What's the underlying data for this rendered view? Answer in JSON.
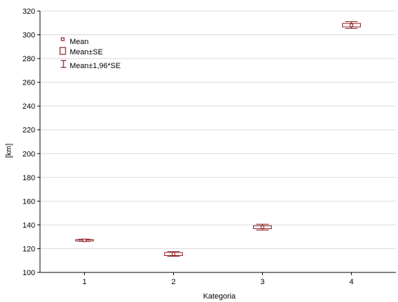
{
  "chart_data": {
    "type": "box",
    "xlabel": "Kategoria",
    "ylabel": "[km]",
    "ylim": [
      100,
      320
    ],
    "yticks": [
      100,
      120,
      140,
      160,
      180,
      200,
      220,
      240,
      260,
      280,
      300,
      320
    ],
    "categories": [
      "1",
      "2",
      "3",
      "4"
    ],
    "series": [
      {
        "stats": [
          {
            "category": "1",
            "mean": 127.0,
            "se_low": 126.5,
            "se_high": 127.6,
            "ci_low": 126.2,
            "ci_high": 128.0
          },
          {
            "category": "2",
            "mean": 115.5,
            "se_low": 114.2,
            "se_high": 116.7,
            "ci_low": 113.5,
            "ci_high": 117.6
          },
          {
            "category": "3",
            "mean": 138.0,
            "se_low": 136.8,
            "se_high": 139.3,
            "ci_low": 135.7,
            "ci_high": 140.5
          },
          {
            "category": "4",
            "mean": 308.0,
            "se_low": 306.6,
            "se_high": 309.6,
            "ci_low": 305.3,
            "ci_high": 311.0
          }
        ]
      }
    ],
    "legend": {
      "placement": "top-left",
      "items": [
        {
          "symbol": "mean",
          "label": "Mean"
        },
        {
          "symbol": "box",
          "label": "Mean±SE"
        },
        {
          "symbol": "whisker",
          "label": "Mean±1,96*SE"
        }
      ]
    },
    "grid": {
      "horizontal": true,
      "vertical": false
    },
    "colors": {
      "mark": "#8b1a1a",
      "grid": "#d9d9d9",
      "axis": "#000000"
    }
  }
}
